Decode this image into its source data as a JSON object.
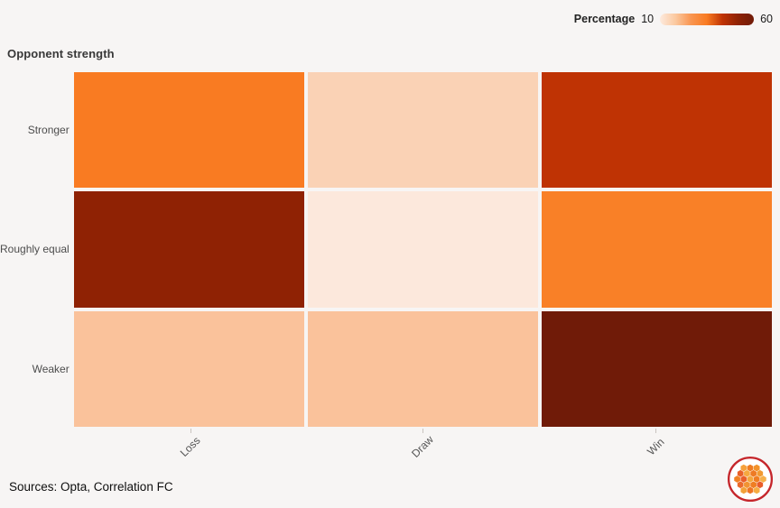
{
  "title": "Opponent strength",
  "legend": {
    "label": "Percentage",
    "min": "10",
    "max": "60"
  },
  "footer": {
    "sources": "Sources: Opta, Correlation FC"
  },
  "chart_data": {
    "type": "heatmap",
    "title": "Opponent strength",
    "columns": [
      "Loss",
      "Draw",
      "Win"
    ],
    "rows": [
      "Stronger",
      "Roughly equal",
      "Weaker"
    ],
    "colorbar": {
      "label": "Percentage",
      "min": 10,
      "max": 60,
      "colors": [
        "#fdeadd",
        "#fbc89f",
        "#f99550",
        "#f97b22",
        "#bf3304",
        "#8f2204",
        "#701b08"
      ]
    },
    "cells": [
      {
        "row": "Stronger",
        "col": "Loss",
        "value": 34,
        "color": "#f97b22"
      },
      {
        "row": "Stronger",
        "col": "Draw",
        "value": 19,
        "color": "#fad2b5"
      },
      {
        "row": "Stronger",
        "col": "Win",
        "value": 46,
        "color": "#bf3304"
      },
      {
        "row": "Roughly equal",
        "col": "Loss",
        "value": 53,
        "color": "#8f2204"
      },
      {
        "row": "Roughly equal",
        "col": "Draw",
        "value": 13,
        "color": "#fce8dc"
      },
      {
        "row": "Roughly equal",
        "col": "Win",
        "value": 34,
        "color": "#f98027"
      },
      {
        "row": "Weaker",
        "col": "Loss",
        "value": 23,
        "color": "#fac29b"
      },
      {
        "row": "Weaker",
        "col": "Draw",
        "value": 23,
        "color": "#fac29b"
      },
      {
        "row": "Weaker",
        "col": "Win",
        "value": 58,
        "color": "#701b08"
      }
    ],
    "axis_note": "cell values estimated from the 10-60 percentage colour scale; no numbers printed on chart"
  }
}
